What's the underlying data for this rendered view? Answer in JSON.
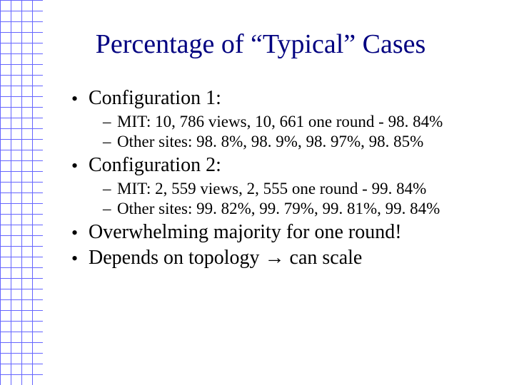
{
  "grid": {
    "columns": 4,
    "rows": 36,
    "cell_size": 15,
    "line_color": "#6666ff",
    "line_width": 1,
    "background": "#ffffff"
  },
  "title": {
    "text": "Percentage of “Typical” Cases",
    "color": "#000080",
    "fontsize": 38
  },
  "body": {
    "text_color": "#000000",
    "level1_fontsize": 28,
    "level2_fontsize": 23,
    "items": [
      {
        "text": "Configuration 1:",
        "children": [
          "MIT: 10, 786 views, 10, 661 one round - 98. 84%",
          "Other sites: 98. 8%, 98. 9%, 98. 97%, 98. 85%"
        ]
      },
      {
        "text": "Configuration 2:",
        "children": [
          "MIT: 2, 559 views, 2, 555 one round - 99. 84%",
          "Other sites: 99. 82%, 99. 79%, 99. 81%, 99. 84%"
        ]
      },
      {
        "text": "Overwhelming majority for one round!"
      },
      {
        "text": "Depends on topology → can scale"
      }
    ]
  }
}
